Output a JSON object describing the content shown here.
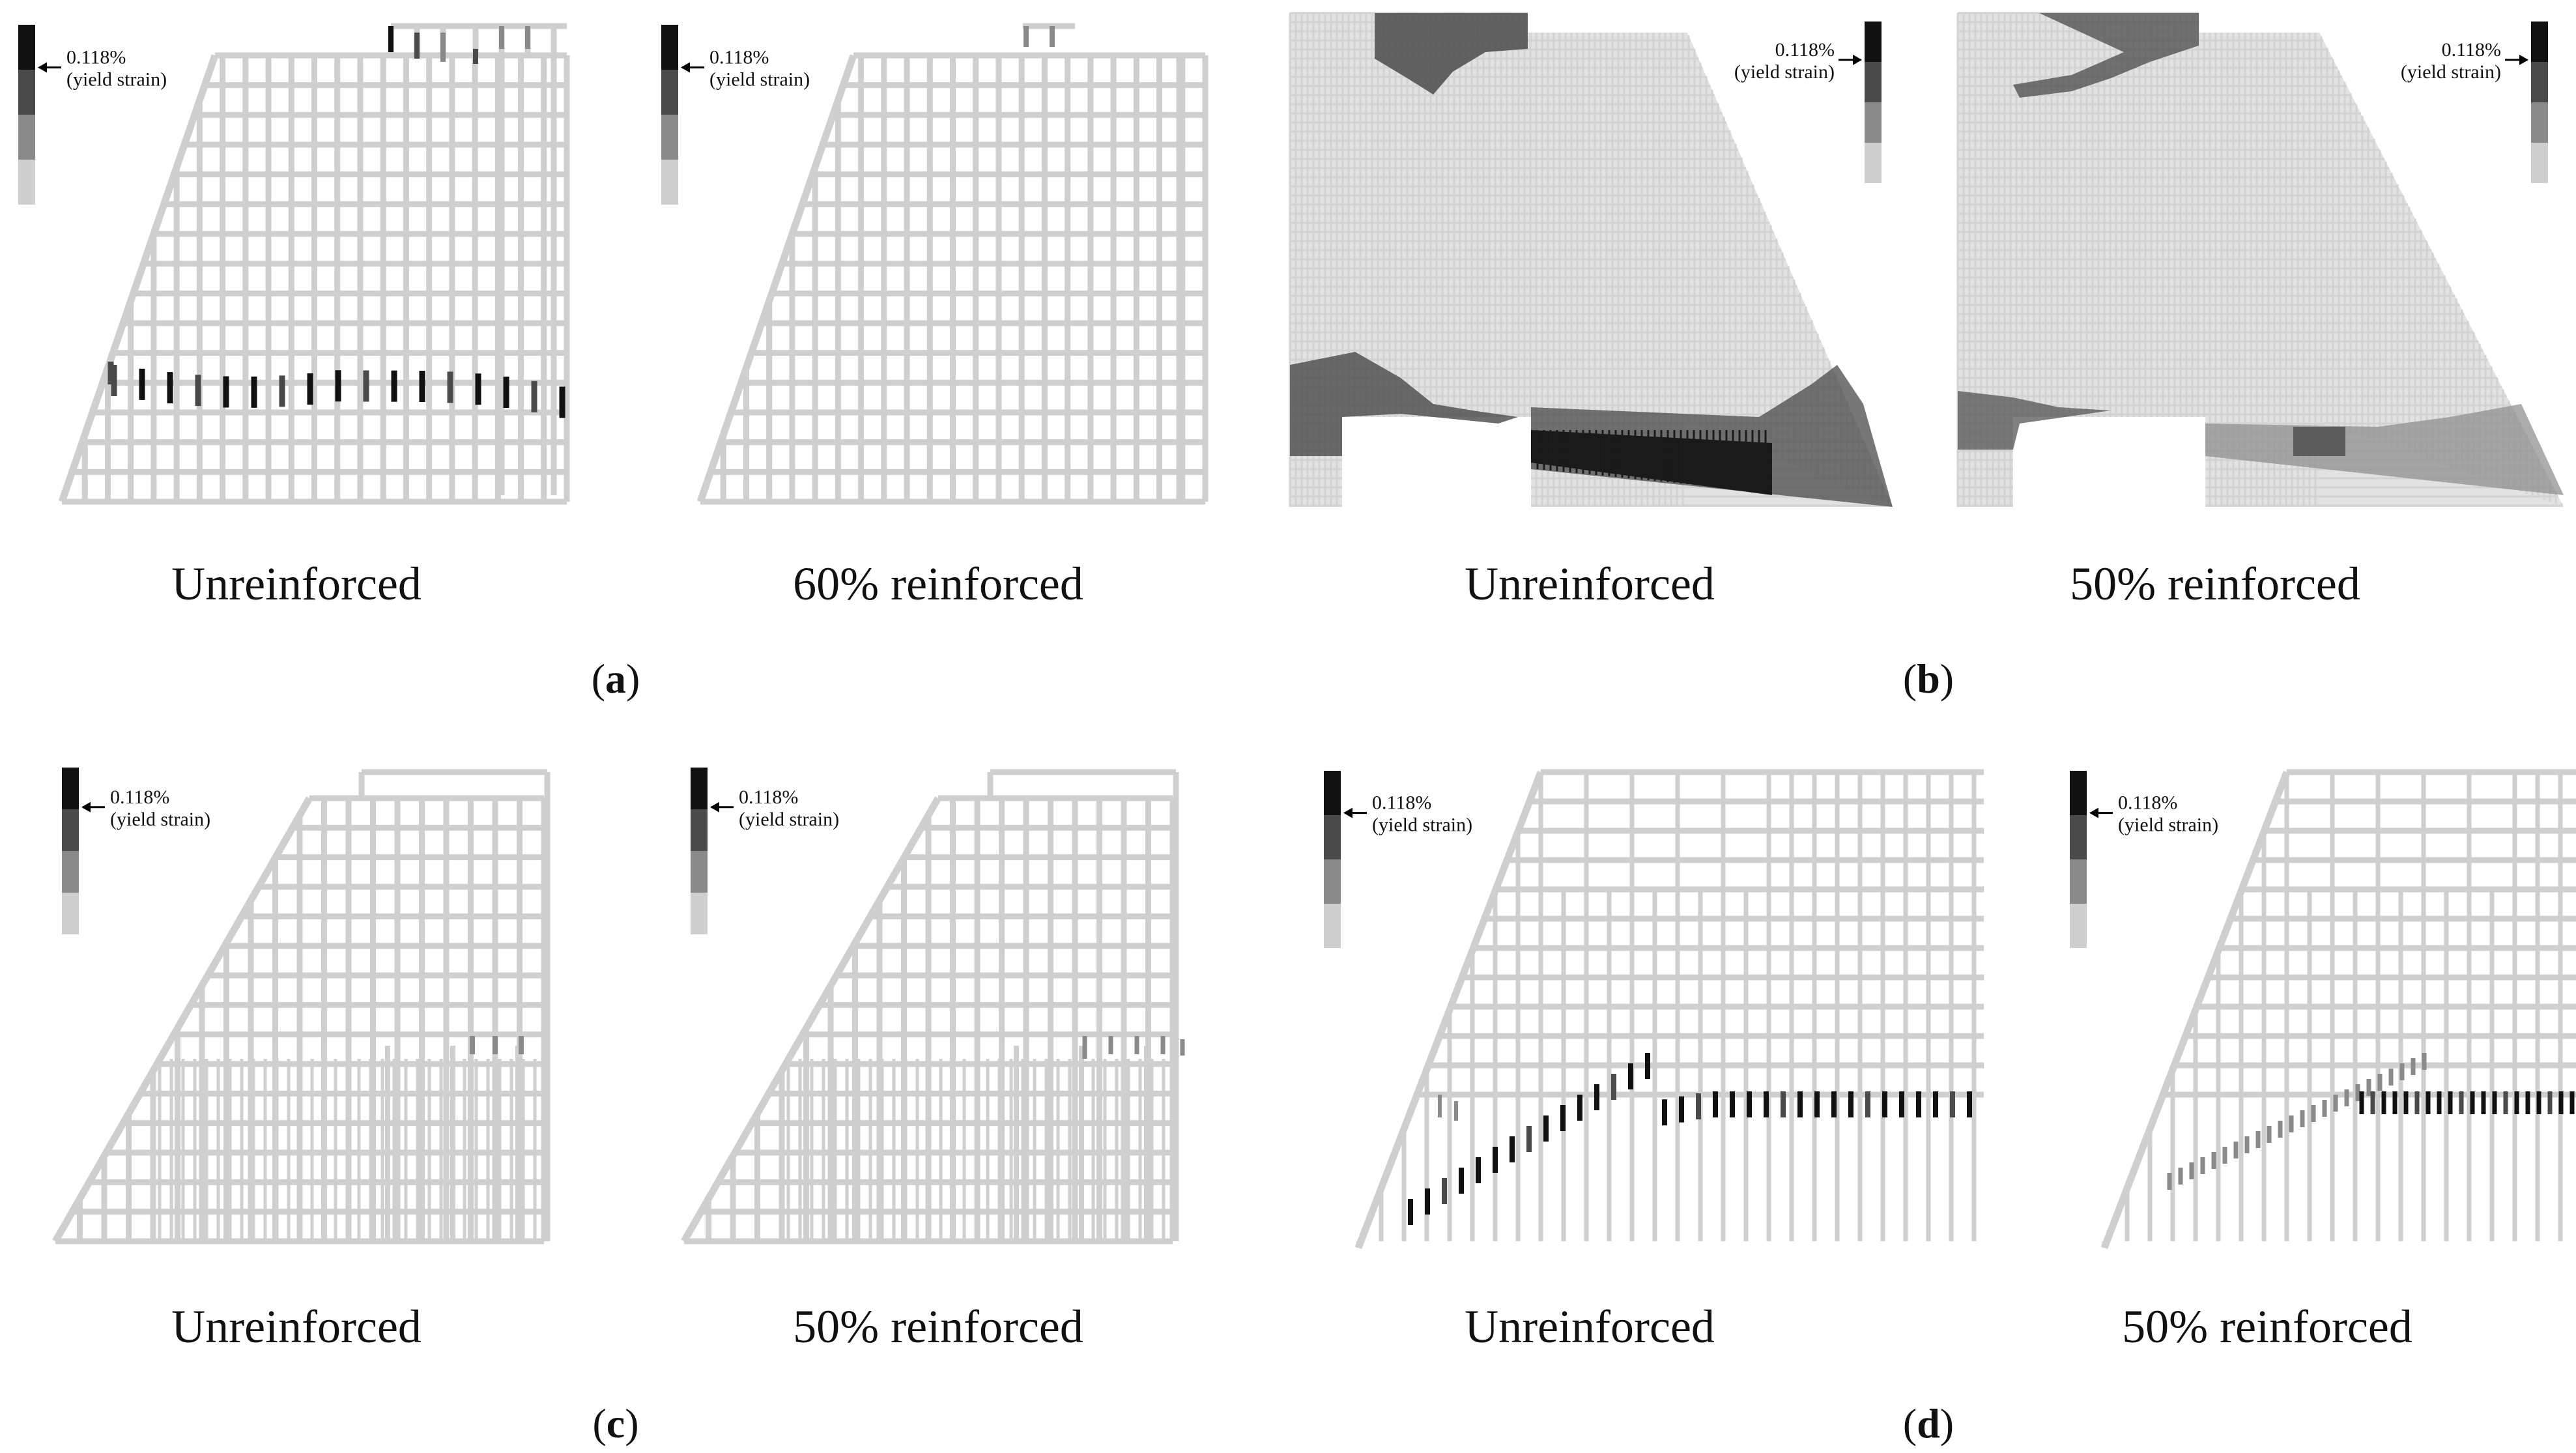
{
  "legend": {
    "value": "0.118%",
    "note": "(yield strain)",
    "levels": [
      "#111111",
      "#4a4a4a",
      "#8a8a8a",
      "#cfcfcf"
    ]
  },
  "colors": {
    "mesh": "#cfcfcf",
    "mesh_dense": "#d3d3d3",
    "high_strain": "#111111",
    "mid_strain": "#4a4a4a",
    "low_strain": "#8a8a8a"
  },
  "panels": [
    {
      "id": "a",
      "open": "(",
      "letter": "a",
      "close": ")",
      "captions": [
        "Unreinforced",
        "60% reinforced"
      ]
    },
    {
      "id": "b",
      "open": "(",
      "letter": "b",
      "close": ")",
      "captions": [
        "Unreinforced",
        "50% reinforced"
      ]
    },
    {
      "id": "c",
      "open": "(",
      "letter": "c",
      "close": ")",
      "captions": [
        "Unreinforced",
        "50% reinforced"
      ]
    },
    {
      "id": "d",
      "open": "(",
      "letter": "d",
      "close": ")",
      "captions": [
        "Unreinforced",
        "50% reinforced"
      ]
    }
  ]
}
